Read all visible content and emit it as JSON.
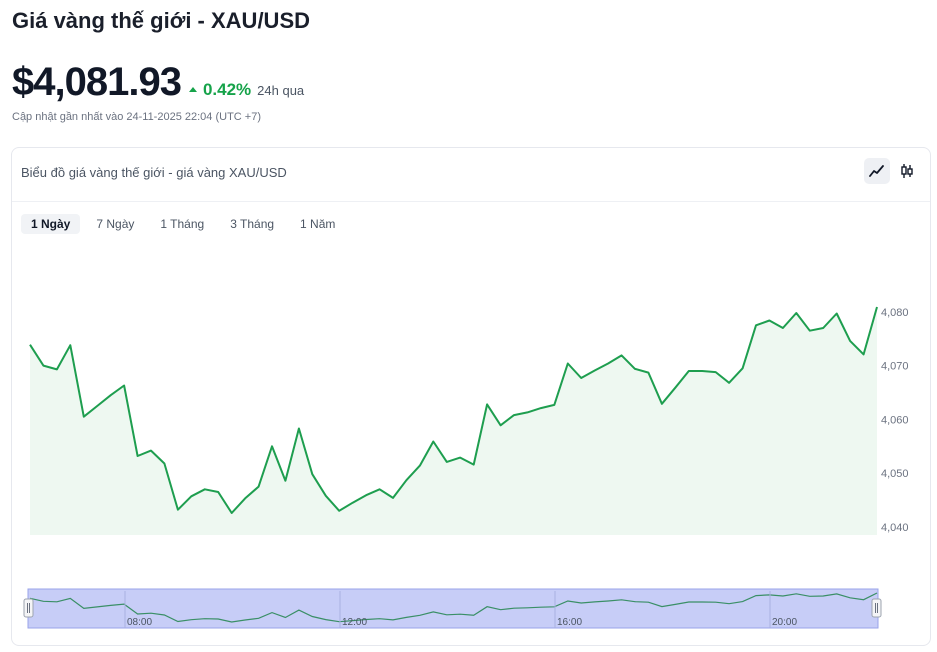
{
  "header": {
    "title": "Giá vàng thế giới - XAU/USD",
    "price": "$4,081.93",
    "change_pct": "0.42%",
    "change_period": "24h qua",
    "updated": "Cập nhật gần nhất vào 24-11-2025 22:04 (UTC +7)"
  },
  "card": {
    "title": "Biểu đồ giá vàng thế giới - giá vàng XAU/USD",
    "view_buttons": [
      {
        "icon": "line-chart-icon",
        "active": true
      },
      {
        "icon": "candlestick-icon",
        "active": false
      }
    ],
    "tabs": [
      {
        "label": "1 Ngày",
        "active": true
      },
      {
        "label": "7 Ngày",
        "active": false
      },
      {
        "label": "1 Tháng",
        "active": false
      },
      {
        "label": "3 Tháng",
        "active": false
      },
      {
        "label": "1 Năm",
        "active": false
      }
    ]
  },
  "colors": {
    "line": "#1e9e4f",
    "area": "#eef8f1",
    "up": "#16a34a",
    "navigator_fill": "#c7cdf7",
    "navigator_line": "#3a8f66"
  },
  "chart_data": {
    "type": "line",
    "title": "",
    "xlabel": "",
    "ylabel": "",
    "ylim": [
      4038.5,
      4085
    ],
    "yticks": [
      4040,
      4050,
      4060,
      4070,
      4080
    ],
    "ytick_labels": [
      "4,040",
      "4,050",
      "4,060",
      "4,070",
      "4,080"
    ],
    "y_axis_position": "right",
    "navigator_ticks": [
      "08:00",
      "12:00",
      "16:00",
      "20:00"
    ],
    "series": [
      {
        "values": [
          4073.9,
          4070.0,
          4069.3,
          4073.8,
          4060.5,
          4062.5,
          4064.5,
          4066.3,
          4053.2,
          4054.2,
          4051.8,
          4043.2,
          4045.7,
          4047.0,
          4046.5,
          4042.6,
          4045.3,
          4047.5,
          4055.0,
          4048.6,
          4058.3,
          4049.8,
          4045.8,
          4043.0,
          4044.5,
          4045.9,
          4047.0,
          4045.4,
          4048.7,
          4051.4,
          4055.9,
          4052.1,
          4052.9,
          4051.6,
          4062.8,
          4058.9,
          4060.8,
          4061.3,
          4062.1,
          4062.7,
          4070.4,
          4067.7,
          4069.1,
          4070.4,
          4071.9,
          4069.4,
          4068.7,
          4062.9,
          4065.9,
          4069.0,
          4069.0,
          4068.8,
          4066.8,
          4069.5,
          4077.5,
          4078.4,
          4077.0,
          4079.8,
          4076.5,
          4077.0,
          4079.7,
          4074.6,
          4072.1,
          4080.9
        ]
      }
    ]
  }
}
